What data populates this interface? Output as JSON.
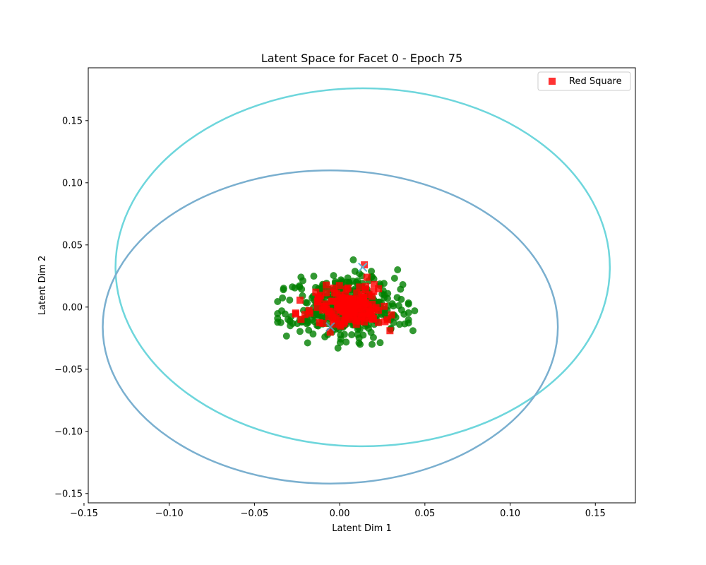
{
  "chart_data": {
    "type": "scatter",
    "title": "Latent Space for Facet 0 - Epoch 75",
    "xlabel": "Latent Dim 1",
    "ylabel": "Latent Dim 2",
    "xlim": [
      -0.1475,
      0.1735
    ],
    "ylim": [
      -0.1575,
      0.1925
    ],
    "xticks": [
      -0.15,
      -0.1,
      -0.05,
      0.0,
      0.05,
      0.1,
      0.15
    ],
    "xtick_labels": [
      "−0.15",
      "−0.10",
      "−0.05",
      "0.00",
      "0.05",
      "0.10",
      "0.15"
    ],
    "yticks": [
      -0.15,
      -0.1,
      -0.05,
      0.0,
      0.05,
      0.1,
      0.15
    ],
    "ytick_labels": [
      "−0.15",
      "−0.10",
      "−0.05",
      "0.00",
      "0.05",
      "0.10",
      "0.15"
    ],
    "grid": false,
    "legend": {
      "placement": "top-right",
      "entries": [
        "Red Square"
      ]
    },
    "series": [
      {
        "name": "Red Square",
        "marker": "square",
        "color": "#ff0000",
        "cluster": {
          "center": [
            0.003,
            -0.001
          ],
          "spread": [
            0.012,
            0.008
          ],
          "count": 160,
          "extra_points": [
            [
              0.0145,
              0.034
            ],
            [
              0.016,
              0.024
            ],
            [
              0.0295,
              -0.019
            ],
            [
              -0.014,
              0.012
            ]
          ]
        }
      },
      {
        "marker": "circle",
        "color": "#008000",
        "cluster": {
          "center": [
            0.002,
            0.0
          ],
          "spread": [
            0.016,
            0.012
          ],
          "count": 420,
          "extra_points": [
            [
              0.008,
              0.038
            ],
            [
              0.034,
              0.03
            ],
            [
              0.044,
              -0.003
            ],
            [
              0.043,
              -0.019
            ],
            [
              -0.034,
              -0.003
            ],
            [
              -0.033,
              0.014
            ],
            [
              -0.001,
              -0.033
            ],
            [
              0.019,
              -0.03
            ],
            [
              0.012,
              -0.03
            ],
            [
              -0.029,
              -0.015
            ]
          ]
        }
      }
    ],
    "centroids": [
      {
        "marker": "x",
        "color": "#5fb8d6",
        "point": [
          0.0135,
          0.032
        ]
      },
      {
        "marker": "x",
        "color": "#5f8fb0",
        "point": [
          -0.0055,
          -0.016
        ]
      }
    ],
    "ellipses": [
      {
        "color": "#6ed6dc",
        "center": [
          0.0135,
          0.032
        ],
        "semi_axes": [
          0.145,
          0.144
        ]
      },
      {
        "color": "#7aafcf",
        "center": [
          -0.0055,
          -0.016
        ],
        "semi_axes": [
          0.1335,
          0.126
        ]
      }
    ]
  }
}
